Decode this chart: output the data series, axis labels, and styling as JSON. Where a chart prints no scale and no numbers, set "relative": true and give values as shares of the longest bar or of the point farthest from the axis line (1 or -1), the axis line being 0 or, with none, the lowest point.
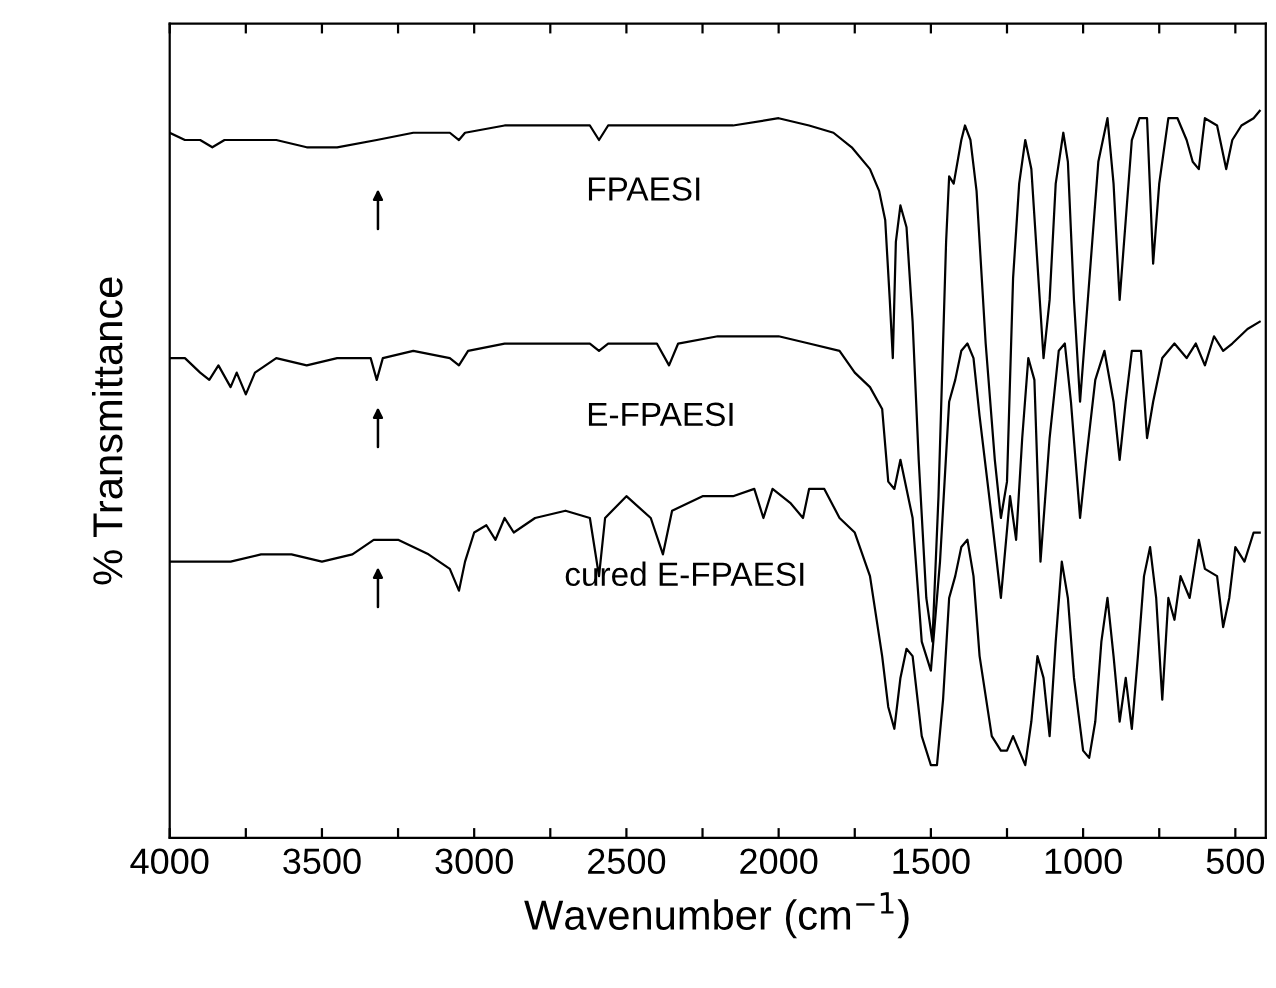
{
  "chart_data": {
    "type": "line",
    "relative": true,
    "xlabel": "Wavenumber (cm$^{−1}$)",
    "ylabel": "% Transmittance",
    "xlim": [
      4000,
      400
    ],
    "xticks": [
      4000,
      {
        "value": 3750,
        "label": null
      },
      3500,
      {
        "value": 3250,
        "label": null
      },
      3000,
      {
        "value": 2750,
        "label": null
      },
      2500,
      {
        "value": 2250,
        "label": null
      },
      2000,
      {
        "value": 1750,
        "label": null
      },
      1500,
      {
        "value": 1250,
        "label": null
      },
      1000,
      {
        "value": 750,
        "label": null
      },
      500
    ],
    "tick_labels": "x",
    "grid": false,
    "legend": false,
    "marker": "none",
    "line_style": "solid",
    "series": [
      {
        "name": "FPAESI",
        "color": "#000000",
        "x": [
          4000,
          3950,
          3900,
          3860,
          3820,
          3780,
          3740,
          3650,
          3550,
          3450,
          3320,
          3200,
          3080,
          3050,
          3030,
          2900,
          2750,
          2620,
          2590,
          2560,
          2450,
          2300,
          2150,
          2000,
          1900,
          1820,
          1760,
          1700,
          1670,
          1650,
          1635,
          1625,
          1615,
          1600,
          1580,
          1560,
          1540,
          1515,
          1495,
          1475,
          1450,
          1440,
          1425,
          1400,
          1388,
          1370,
          1350,
          1320,
          1290,
          1270,
          1250,
          1230,
          1210,
          1190,
          1170,
          1150,
          1130,
          1110,
          1090,
          1065,
          1050,
          1030,
          1010,
          990,
          970,
          950,
          920,
          900,
          880,
          860,
          840,
          815,
          790,
          770,
          750,
          720,
          690,
          660,
          640,
          620,
          600,
          560,
          530,
          510,
          480,
          440,
          420
        ],
        "values": [
          0.97,
          0.96,
          0.96,
          0.95,
          0.96,
          0.96,
          0.96,
          0.96,
          0.95,
          0.95,
          0.96,
          0.97,
          0.97,
          0.96,
          0.97,
          0.98,
          0.98,
          0.98,
          0.96,
          0.98,
          0.98,
          0.98,
          0.98,
          0.99,
          0.98,
          0.97,
          0.95,
          0.92,
          0.89,
          0.85,
          0.74,
          0.66,
          0.82,
          0.87,
          0.84,
          0.71,
          0.52,
          0.33,
          0.27,
          0.47,
          0.82,
          0.91,
          0.9,
          0.96,
          0.98,
          0.96,
          0.89,
          0.68,
          0.52,
          0.44,
          0.49,
          0.77,
          0.9,
          0.96,
          0.92,
          0.79,
          0.66,
          0.74,
          0.9,
          0.97,
          0.93,
          0.74,
          0.6,
          0.71,
          0.82,
          0.93,
          0.99,
          0.9,
          0.74,
          0.85,
          0.96,
          0.99,
          0.99,
          0.79,
          0.9,
          0.99,
          0.99,
          0.96,
          0.93,
          0.92,
          0.99,
          0.98,
          0.92,
          0.96,
          0.98,
          0.99,
          1.0
        ]
      },
      {
        "name": "E-FPAESI",
        "color": "#000000",
        "x": [
          4000,
          3950,
          3900,
          3870,
          3840,
          3800,
          3780,
          3750,
          3720,
          3650,
          3550,
          3450,
          3340,
          3320,
          3300,
          3200,
          3080,
          3050,
          3020,
          2900,
          2750,
          2620,
          2590,
          2560,
          2400,
          2360,
          2330,
          2200,
          2000,
          1900,
          1800,
          1750,
          1700,
          1660,
          1640,
          1620,
          1600,
          1560,
          1530,
          1500,
          1470,
          1440,
          1420,
          1400,
          1380,
          1360,
          1340,
          1300,
          1270,
          1240,
          1220,
          1200,
          1180,
          1160,
          1140,
          1110,
          1080,
          1060,
          1040,
          1010,
          990,
          960,
          930,
          900,
          880,
          860,
          840,
          810,
          790,
          770,
          740,
          700,
          660,
          630,
          600,
          570,
          540,
          510,
          460,
          420
        ],
        "values": [
          0.66,
          0.66,
          0.64,
          0.63,
          0.65,
          0.62,
          0.64,
          0.61,
          0.64,
          0.66,
          0.65,
          0.66,
          0.66,
          0.63,
          0.66,
          0.67,
          0.66,
          0.65,
          0.67,
          0.68,
          0.68,
          0.68,
          0.67,
          0.68,
          0.68,
          0.65,
          0.68,
          0.69,
          0.69,
          0.68,
          0.67,
          0.64,
          0.62,
          0.59,
          0.49,
          0.48,
          0.52,
          0.44,
          0.27,
          0.23,
          0.38,
          0.6,
          0.63,
          0.67,
          0.68,
          0.66,
          0.58,
          0.44,
          0.33,
          0.47,
          0.41,
          0.55,
          0.66,
          0.63,
          0.38,
          0.55,
          0.67,
          0.68,
          0.6,
          0.44,
          0.52,
          0.63,
          0.67,
          0.6,
          0.52,
          0.6,
          0.67,
          0.67,
          0.55,
          0.6,
          0.66,
          0.68,
          0.66,
          0.68,
          0.65,
          0.69,
          0.67,
          0.68,
          0.7,
          0.71
        ]
      },
      {
        "name": "cured E-FPAESI",
        "color": "#000000",
        "x": [
          4000,
          3900,
          3800,
          3700,
          3600,
          3500,
          3400,
          3330,
          3250,
          3150,
          3080,
          3050,
          3030,
          3000,
          2960,
          2930,
          2900,
          2870,
          2800,
          2700,
          2620,
          2590,
          2570,
          2500,
          2420,
          2380,
          2350,
          2250,
          2150,
          2080,
          2050,
          2020,
          1960,
          1920,
          1900,
          1850,
          1800,
          1750,
          1700,
          1660,
          1640,
          1620,
          1600,
          1580,
          1560,
          1530,
          1500,
          1480,
          1460,
          1440,
          1420,
          1400,
          1380,
          1360,
          1340,
          1300,
          1270,
          1250,
          1230,
          1210,
          1190,
          1170,
          1150,
          1130,
          1110,
          1090,
          1070,
          1050,
          1030,
          1000,
          980,
          960,
          940,
          920,
          900,
          880,
          860,
          840,
          820,
          800,
          780,
          760,
          740,
          720,
          700,
          680,
          650,
          620,
          600,
          560,
          540,
          520,
          500,
          470,
          440,
          420
        ],
        "values": [
          0.38,
          0.38,
          0.38,
          0.39,
          0.39,
          0.38,
          0.39,
          0.41,
          0.41,
          0.39,
          0.37,
          0.34,
          0.38,
          0.42,
          0.43,
          0.41,
          0.44,
          0.42,
          0.44,
          0.45,
          0.44,
          0.36,
          0.44,
          0.47,
          0.44,
          0.39,
          0.45,
          0.47,
          0.47,
          0.48,
          0.44,
          0.48,
          0.46,
          0.44,
          0.48,
          0.48,
          0.44,
          0.42,
          0.36,
          0.25,
          0.18,
          0.15,
          0.22,
          0.26,
          0.25,
          0.14,
          0.1,
          0.1,
          0.19,
          0.33,
          0.36,
          0.4,
          0.41,
          0.36,
          0.25,
          0.14,
          0.12,
          0.12,
          0.14,
          0.12,
          0.1,
          0.16,
          0.25,
          0.22,
          0.14,
          0.27,
          0.38,
          0.33,
          0.22,
          0.12,
          0.11,
          0.16,
          0.27,
          0.33,
          0.25,
          0.16,
          0.22,
          0.15,
          0.25,
          0.36,
          0.4,
          0.33,
          0.19,
          0.33,
          0.3,
          0.36,
          0.33,
          0.41,
          0.37,
          0.36,
          0.29,
          0.33,
          0.4,
          0.38,
          0.42,
          0.42
        ]
      }
    ]
  }
}
